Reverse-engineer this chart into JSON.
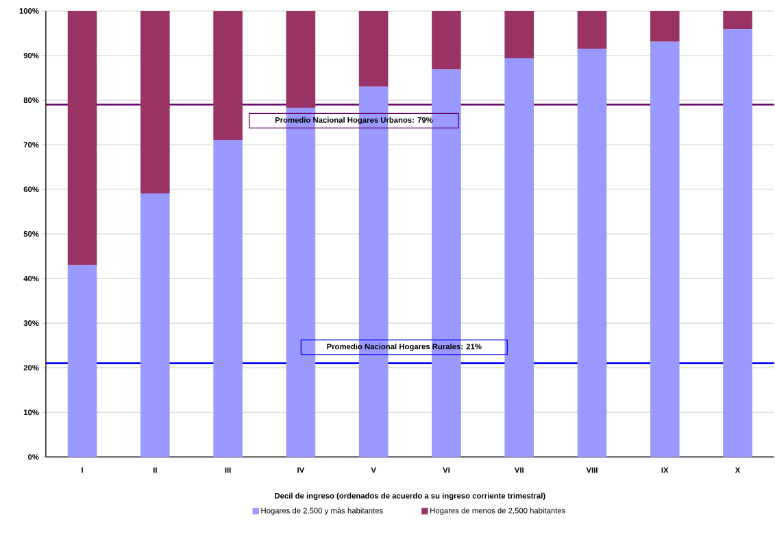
{
  "chart_data": {
    "type": "bar",
    "stacked": true,
    "xlabel": "Decil de ingreso (ordenados de acuerdo a su ingreso corriente trimestral)",
    "categories": [
      "I",
      "II",
      "III",
      "IV",
      "V",
      "VI",
      "VII",
      "VIII",
      "IX",
      "X"
    ],
    "series": [
      {
        "name": "Hogares de 2,500 y más habitantes",
        "color": "#9999ff",
        "values": [
          43.0,
          59.1,
          71.1,
          78.3,
          83,
          86.9,
          89.4,
          91.5,
          93.1,
          96.0
        ]
      },
      {
        "name": "Hogares de menos de 2,500 habitantes",
        "color": "#993366",
        "values": [
          57.0,
          40.9,
          28.9,
          21.7,
          17,
          13.1,
          10.6,
          8.5,
          6.9,
          4.0
        ]
      }
    ],
    "ylim": [
      0,
      100
    ],
    "yticks": [
      {
        "value": 0,
        "label": "0%"
      },
      {
        "value": 10,
        "label": "10%"
      },
      {
        "value": 20,
        "label": "20%"
      },
      {
        "value": 30,
        "label": "30%"
      },
      {
        "value": 40,
        "label": "40%"
      },
      {
        "value": 50,
        "label": "50%"
      },
      {
        "value": 60,
        "label": "60%"
      },
      {
        "value": 70,
        "label": "70%"
      },
      {
        "value": 80,
        "label": "80%"
      },
      {
        "value": 90,
        "label": "90%"
      },
      {
        "value": 100,
        "label": "100%"
      }
    ],
    "grid": "y",
    "legend": "bottom",
    "ref_lines": [
      {
        "axis": "y",
        "value": 79,
        "label": "Promedio Nacional Hogares Urbanos: 79%",
        "color": "#660066"
      },
      {
        "axis": "y",
        "value": 21,
        "label": "Promedio Nacional Hogares Rurales: 21%",
        "color": "#0000ff"
      }
    ]
  }
}
